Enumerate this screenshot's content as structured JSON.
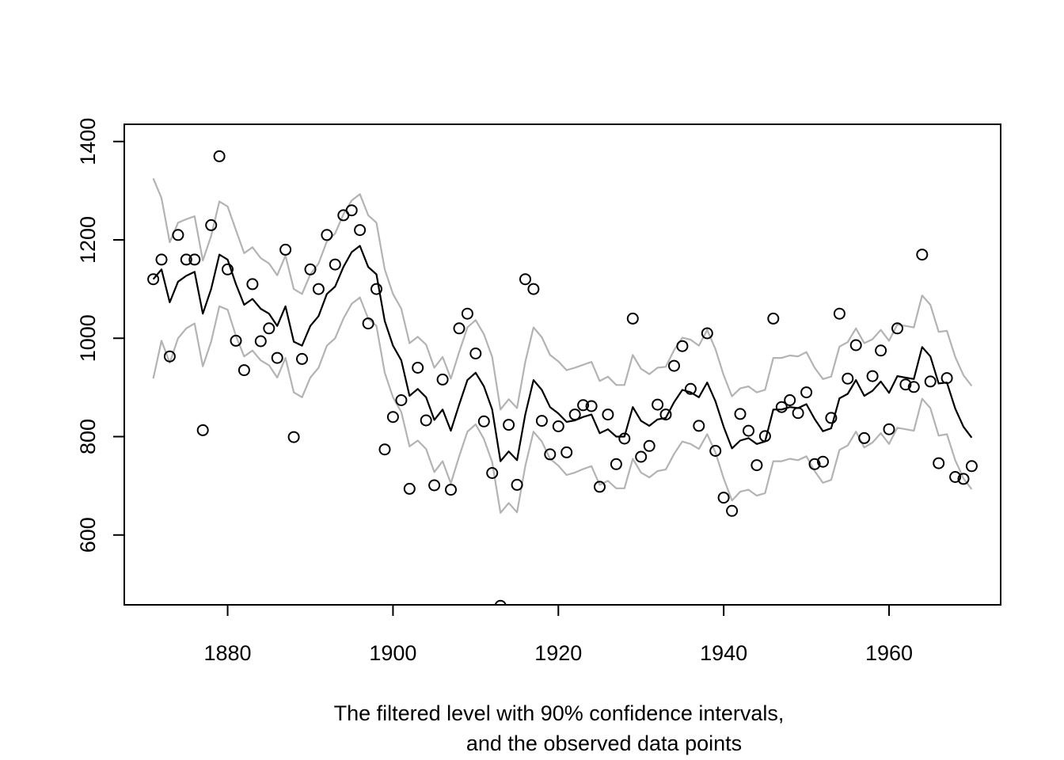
{
  "chart_data": {
    "type": "line",
    "title": "",
    "xlabel_lines": [
      "The filtered level with 90% confidence intervals,",
      "and the observed data points"
    ],
    "ylabel": "",
    "xlim": [
      1867.5,
      1973.5
    ],
    "ylim": [
      458,
      1435
    ],
    "x_ticks": [
      1880,
      1900,
      1920,
      1940,
      1960
    ],
    "y_ticks": [
      600,
      800,
      1000,
      1200,
      1400
    ],
    "grid": false,
    "legend": "none",
    "colors": {
      "filtered": "#000000",
      "interval": "#b3b3b3",
      "points": "#000000"
    },
    "x": [
      1871,
      1872,
      1873,
      1874,
      1875,
      1876,
      1877,
      1878,
      1879,
      1880,
      1881,
      1882,
      1883,
      1884,
      1885,
      1886,
      1887,
      1888,
      1889,
      1890,
      1891,
      1892,
      1893,
      1894,
      1895,
      1896,
      1897,
      1898,
      1899,
      1900,
      1901,
      1902,
      1903,
      1904,
      1905,
      1906,
      1907,
      1908,
      1909,
      1910,
      1911,
      1912,
      1913,
      1914,
      1915,
      1916,
      1917,
      1918,
      1919,
      1920,
      1921,
      1922,
      1923,
      1924,
      1925,
      1926,
      1927,
      1928,
      1929,
      1930,
      1931,
      1932,
      1933,
      1934,
      1935,
      1936,
      1937,
      1938,
      1939,
      1940,
      1941,
      1942,
      1943,
      1944,
      1945,
      1946,
      1947,
      1948,
      1949,
      1950,
      1951,
      1952,
      1953,
      1954,
      1955,
      1956,
      1957,
      1958,
      1959,
      1960,
      1961,
      1962,
      1963,
      1964,
      1965,
      1966,
      1967,
      1968,
      1969,
      1970
    ],
    "series": [
      {
        "name": "observed",
        "kind": "points",
        "values": [
          1120,
          1160,
          963,
          1210,
          1160,
          1160,
          813,
          1230,
          1370,
          1140,
          995,
          935,
          1110,
          994,
          1020,
          960,
          1180,
          799,
          958,
          1140,
          1100,
          1210,
          1150,
          1250,
          1260,
          1220,
          1030,
          1100,
          774,
          840,
          874,
          694,
          940,
          833,
          701,
          916,
          692,
          1020,
          1050,
          969,
          831,
          726,
          456,
          824,
          702,
          1120,
          1100,
          832,
          764,
          821,
          768,
          845,
          864,
          862,
          698,
          845,
          744,
          796,
          1040,
          759,
          781,
          865,
          845,
          944,
          984,
          897,
          822,
          1010,
          771,
          676,
          649,
          846,
          812,
          742,
          801,
          1040,
          860,
          874,
          848,
          890,
          744,
          749,
          838,
          1050,
          918,
          986,
          797,
          923,
          975,
          815,
          1020,
          906,
          901,
          1170,
          912,
          746,
          919,
          718,
          714,
          740
        ]
      },
      {
        "name": "filtered level",
        "kind": "line",
        "values": [
          1120,
          1140,
          1073,
          1115,
          1127,
          1135,
          1050,
          1100,
          1170,
          1160,
          1110,
          1068,
          1080,
          1060,
          1050,
          1025,
          1065,
          993,
          985,
          1025,
          1045,
          1090,
          1105,
          1145,
          1175,
          1188,
          1145,
          1130,
          1035,
          985,
          955,
          883,
          897,
          880,
          834,
          855,
          812,
          865,
          915,
          930,
          902,
          855,
          750,
          770,
          752,
          845,
          915,
          895,
          860,
          847,
          830,
          833,
          840,
          845,
          807,
          815,
          800,
          800,
          860,
          832,
          822,
          835,
          838,
          870,
          895,
          890,
          880,
          910,
          872,
          820,
          776,
          792,
          797,
          785,
          790,
          855,
          855,
          860,
          858,
          866,
          836,
          811,
          817,
          878,
          887,
          915,
          883,
          893,
          912,
          889,
          923,
          920,
          917,
          982,
          963,
          908,
          910,
          857,
          820,
          798
        ]
      },
      {
        "name": "upper 90% interval",
        "kind": "line",
        "values": [
          1325,
          1285,
          1195,
          1235,
          1242,
          1248,
          1158,
          1208,
          1278,
          1268,
          1220,
          1173,
          1185,
          1163,
          1152,
          1128,
          1168,
          1100,
          1090,
          1130,
          1152,
          1197,
          1213,
          1252,
          1280,
          1293,
          1250,
          1235,
          1140,
          1090,
          1060,
          990,
          1003,
          987,
          940,
          962,
          918,
          972,
          1022,
          1037,
          1008,
          962,
          855,
          876,
          858,
          952,
          1022,
          1002,
          966,
          953,
          935,
          940,
          946,
          952,
          913,
          922,
          905,
          905,
          966,
          938,
          927,
          940,
          942,
          976,
          1001,
          997,
          985,
          1017,
          978,
          925,
          882,
          898,
          902,
          890,
          895,
          960,
          960,
          965,
          963,
          972,
          940,
          917,
          922,
          983,
          992,
          1020,
          990,
          998,
          1017,
          995,
          1028,
          1025,
          1022,
          1087,
          1068,
          1013,
          1015,
          962,
          925,
          903
        ]
      },
      {
        "name": "lower 90% interval",
        "kind": "line",
        "values": [
          918,
          995,
          950,
          1000,
          1020,
          1030,
          943,
          993,
          1065,
          1058,
          1005,
          963,
          975,
          955,
          945,
          920,
          960,
          890,
          880,
          920,
          940,
          985,
          1000,
          1040,
          1070,
          1083,
          1040,
          1025,
          930,
          880,
          850,
          780,
          792,
          775,
          728,
          750,
          705,
          760,
          810,
          825,
          795,
          748,
          645,
          665,
          646,
          740,
          810,
          790,
          755,
          741,
          722,
          727,
          734,
          740,
          702,
          710,
          695,
          695,
          755,
          727,
          717,
          730,
          733,
          765,
          790,
          785,
          775,
          805,
          768,
          715,
          670,
          688,
          692,
          680,
          685,
          750,
          750,
          755,
          752,
          760,
          730,
          706,
          712,
          773,
          782,
          810,
          778,
          788,
          807,
          785,
          818,
          815,
          812,
          877,
          858,
          802,
          805,
          752,
          715,
          693
        ]
      }
    ]
  }
}
